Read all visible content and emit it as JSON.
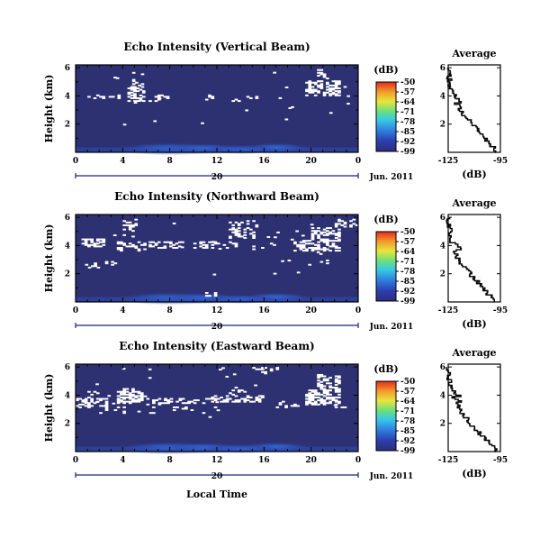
{
  "shared": {
    "ylabel": "Height (km)",
    "yticks": [
      "6",
      "4",
      "2"
    ],
    "xticks": [
      "0",
      "4",
      "8",
      "12",
      "16",
      "20",
      "0"
    ],
    "day_label": "20",
    "date_label": "Jun. 2011",
    "colorbar_unit": "(dB)",
    "colorbar_ticks": [
      "-50",
      "-57",
      "-64",
      "-71",
      "-78",
      "-85",
      "-92",
      "-99"
    ],
    "avg_title": "Average",
    "avg_xticks": [
      "-125",
      "-95"
    ],
    "avg_yticks": [
      "6",
      "4",
      "2"
    ],
    "avg_xlabel": "(dB)",
    "xlabel": "Local Time",
    "colors": {
      "background": "#2d3172",
      "echo": "#ffffff",
      "axis": "#000000",
      "date_bar": "#1a237e"
    }
  },
  "chart_data": [
    {
      "type": "heatmap",
      "title": "Echo Intensity (Vertical Beam)",
      "ylabel": "Height (km)",
      "xlabel": "",
      "x_range_hours": [
        0,
        24
      ],
      "y_range_km": [
        0,
        6.2
      ],
      "color_range_db": [
        -99,
        -50
      ],
      "average_profile": {
        "x_range_db": [
          -125,
          -95
        ],
        "y_km": [
          0,
          1,
          2,
          3,
          4,
          5,
          6
        ],
        "db": [
          -96,
          -104,
          -111,
          -118,
          -122,
          -124,
          -125
        ]
      }
    },
    {
      "type": "heatmap",
      "title": "Echo Intensity (Northward Beam)",
      "ylabel": "Height (km)",
      "xlabel": "",
      "x_range_hours": [
        0,
        24
      ],
      "y_range_km": [
        0,
        6.2
      ],
      "color_range_db": [
        -99,
        -50
      ],
      "average_profile": {
        "x_range_db": [
          -125,
          -95
        ],
        "y_km": [
          0,
          1,
          2,
          3,
          4,
          5,
          6
        ],
        "db": [
          -97,
          -105,
          -112,
          -119,
          -122,
          -124,
          -125
        ]
      }
    },
    {
      "type": "heatmap",
      "title": "Echo Intensity (Eastward Beam)",
      "ylabel": "Height (km)",
      "xlabel": "Local Time",
      "x_range_hours": [
        0,
        24
      ],
      "y_range_km": [
        0,
        6.2
      ],
      "color_range_db": [
        -99,
        -50
      ],
      "average_profile": {
        "x_range_db": [
          -125,
          -95
        ],
        "y_km": [
          0,
          1,
          2,
          3,
          4,
          5,
          6
        ],
        "db": [
          -97,
          -104,
          -112,
          -118,
          -122,
          -124,
          -125
        ]
      }
    }
  ]
}
